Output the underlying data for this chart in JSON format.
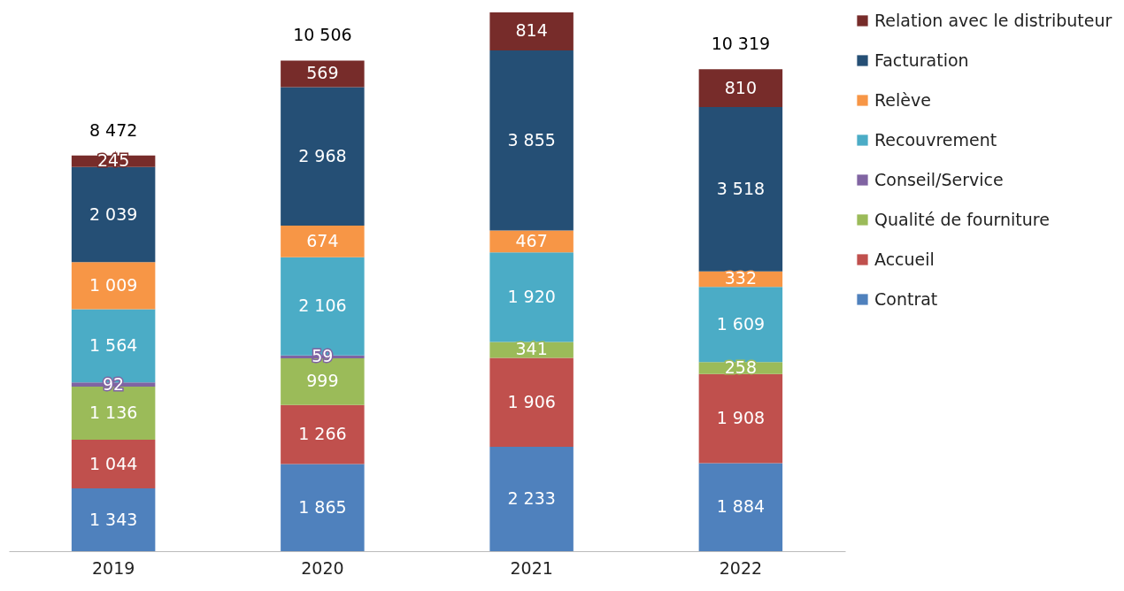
{
  "chart_data": {
    "type": "bar",
    "stacked": true,
    "categories": [
      "2019",
      "2020",
      "2021",
      "2022"
    ],
    "series": [
      {
        "name": "Contrat",
        "color": "#4f81bd",
        "values": [
          1343,
          1865,
          2233,
          1884
        ],
        "value_labels": [
          "1 343",
          "1 865",
          "2 233",
          "1 884"
        ]
      },
      {
        "name": "Accueil",
        "color": "#c0504d",
        "values": [
          1044,
          1266,
          1906,
          1908
        ],
        "value_labels": [
          "1 044",
          "1 266",
          "1 906",
          "1 908"
        ]
      },
      {
        "name": "Qualité de fourniture",
        "color": "#9bbb59",
        "values": [
          1136,
          999,
          341,
          258
        ],
        "value_labels": [
          "1 136",
          "999",
          "341",
          "258"
        ]
      },
      {
        "name": "Conseil/Service",
        "color": "#8064a2",
        "values": [
          92,
          59,
          null,
          null
        ],
        "value_labels": [
          "92",
          "59",
          null,
          null
        ]
      },
      {
        "name": "Recouvrement",
        "color": "#4bacc6",
        "values": [
          1564,
          2106,
          1920,
          1609
        ],
        "value_labels": [
          "1 564",
          "2 106",
          "1 920",
          "1 609"
        ]
      },
      {
        "name": "Relève",
        "color": "#f79646",
        "values": [
          1009,
          674,
          467,
          332
        ],
        "value_labels": [
          "1 009",
          "674",
          "467",
          "332"
        ]
      },
      {
        "name": "Facturation",
        "color": "#254f75",
        "values": [
          2039,
          2968,
          3855,
          3518
        ],
        "value_labels": [
          "2 039",
          "2 968",
          "3 855",
          "3 518"
        ]
      },
      {
        "name": "Relation avec le distributeur",
        "color": "#772c2a",
        "values": [
          245,
          569,
          814,
          810
        ],
        "value_labels": [
          "245",
          "569",
          "814",
          "810"
        ]
      }
    ],
    "totals": [
      "8 472",
      "10 506",
      null,
      "10 319"
    ],
    "legend": "right",
    "tick_labels": "x"
  }
}
